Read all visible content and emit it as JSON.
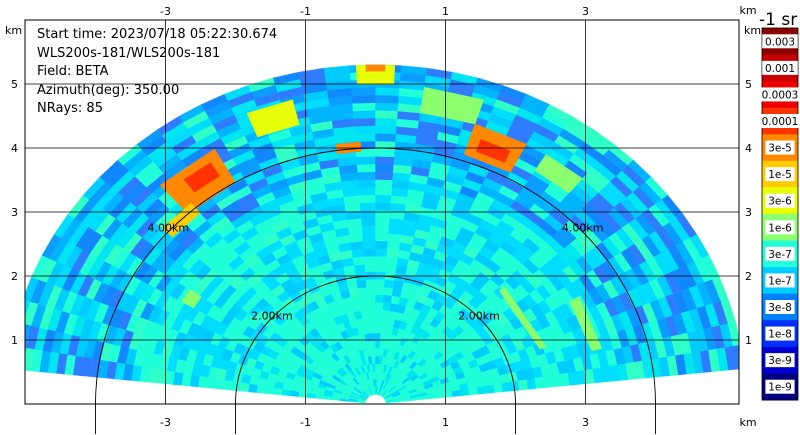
{
  "chart_data": {
    "type": "heatmap",
    "subtype": "ppi-sector-scan",
    "info_lines": [
      "Start time: 2023/07/18 05:22:30.674",
      "WLS200s-181/WLS200s-181",
      "Field: BETA",
      "Azimuth(deg): 350.00",
      "NRays: 85"
    ],
    "axis_unit": "km",
    "x_ticks": [
      -3,
      -1,
      1,
      3
    ],
    "y_ticks": [
      1,
      2,
      3,
      4,
      5
    ],
    "xlim": [
      -5.0,
      5.0
    ],
    "ylim": [
      0,
      5.95
    ],
    "range_rings": [
      {
        "radius_km": 2.0,
        "label": "2.00km"
      },
      {
        "radius_km": 4.0,
        "label": "4.00km"
      }
    ],
    "sector": {
      "az_min_deg": -84,
      "az_max_deg": 84,
      "r_min_km": 0.15,
      "r_max_km": 5.3
    },
    "colorbar": {
      "unit_title": "-1 sr",
      "scale": "log",
      "tick_labels": [
        "0.003",
        "0.001",
        "0.0003",
        "0.0001",
        "3e-5",
        "1e-5",
        "3e-6",
        "1e-6",
        "3e-7",
        "1e-7",
        "3e-8",
        "1e-8",
        "3e-9",
        "1e-9"
      ],
      "colors": [
        "#8b0000",
        "#c80000",
        "#ee0000",
        "#ff3300",
        "#ff8800",
        "#ffcc00",
        "#e8ff0a",
        "#8cff6e",
        "#20ffd8",
        "#00ccff",
        "#0080ff",
        "#0030ff",
        "#0000d0",
        "#000080"
      ]
    },
    "grid": true
  }
}
